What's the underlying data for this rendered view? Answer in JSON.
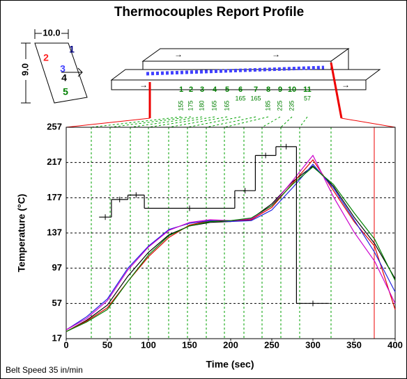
{
  "chart_data": {
    "type": "line",
    "title": "Thermocouples Report Profile",
    "xlabel": "Time (sec)",
    "ylabel": "Temperature (°C)",
    "note": "Belt Speed 35 in/min",
    "xlim": [
      0,
      400
    ],
    "xticks": [
      0,
      50,
      100,
      150,
      200,
      250,
      300,
      350,
      400
    ],
    "ylim": [
      17,
      257
    ],
    "yticks": [
      17,
      57,
      97,
      137,
      177,
      217,
      257
    ],
    "grid": true,
    "x": [
      0,
      25,
      50,
      75,
      100,
      125,
      150,
      175,
      200,
      225,
      250,
      275,
      300,
      325,
      350,
      375,
      400
    ],
    "series": [
      {
        "color": "#000000",
        "values": [
          25,
          38,
          55,
          88,
          115,
          135,
          145,
          149,
          150,
          153,
          170,
          195,
          213,
          190,
          155,
          125,
          85
        ]
      },
      {
        "color": "#e00000",
        "values": [
          25,
          37,
          52,
          82,
          110,
          132,
          146,
          151,
          150,
          152,
          166,
          193,
          220,
          185,
          150,
          122,
          50
        ]
      },
      {
        "color": "#2020e0",
        "values": [
          27,
          42,
          62,
          97,
          122,
          141,
          148,
          151,
          150,
          151,
          163,
          188,
          215,
          188,
          152,
          115,
          70
        ]
      },
      {
        "color": "#cc00cc",
        "values": [
          27,
          40,
          60,
          95,
          121,
          140,
          149,
          152,
          151,
          153,
          168,
          196,
          225,
          178,
          138,
          105,
          57
        ]
      },
      {
        "color": "#008000",
        "values": [
          25,
          36,
          50,
          82,
          112,
          134,
          145,
          150,
          151,
          154,
          168,
          192,
          212,
          192,
          160,
          130,
          83
        ]
      }
    ],
    "setpoint": {
      "color": "#000000",
      "x_start": [
        40,
        55,
        75,
        95,
        205,
        230,
        255,
        280
      ],
      "x_end": [
        55,
        75,
        95,
        205,
        230,
        255,
        280,
        320
      ],
      "values": [
        155,
        175,
        180,
        165,
        185,
        225,
        235,
        57
      ]
    },
    "diagram": {
      "board_width": "10.0",
      "board_length": "9.0",
      "thermocouples": [
        {
          "label": "1",
          "color": "#000080"
        },
        {
          "label": "2",
          "color": "#ff2020"
        },
        {
          "label": "3",
          "color": "#4040ff"
        },
        {
          "label": "4",
          "color": "#000000"
        },
        {
          "label": "5",
          "color": "#008000"
        }
      ],
      "zones": [
        {
          "label": "1",
          "temp": "155"
        },
        {
          "label": "2",
          "temp": "175"
        },
        {
          "label": "3",
          "temp": "180"
        },
        {
          "label": "4",
          "temp": "165"
        },
        {
          "label": "5",
          "temp": "165"
        },
        {
          "label": "6",
          "temp": "165"
        },
        {
          "label": "7",
          "temp": "165"
        },
        {
          "label": "8",
          "temp": "185"
        },
        {
          "label": "9",
          "temp": "225"
        },
        {
          "label": "10",
          "temp": "235"
        },
        {
          "label": "11",
          "temp": "57"
        }
      ]
    }
  }
}
